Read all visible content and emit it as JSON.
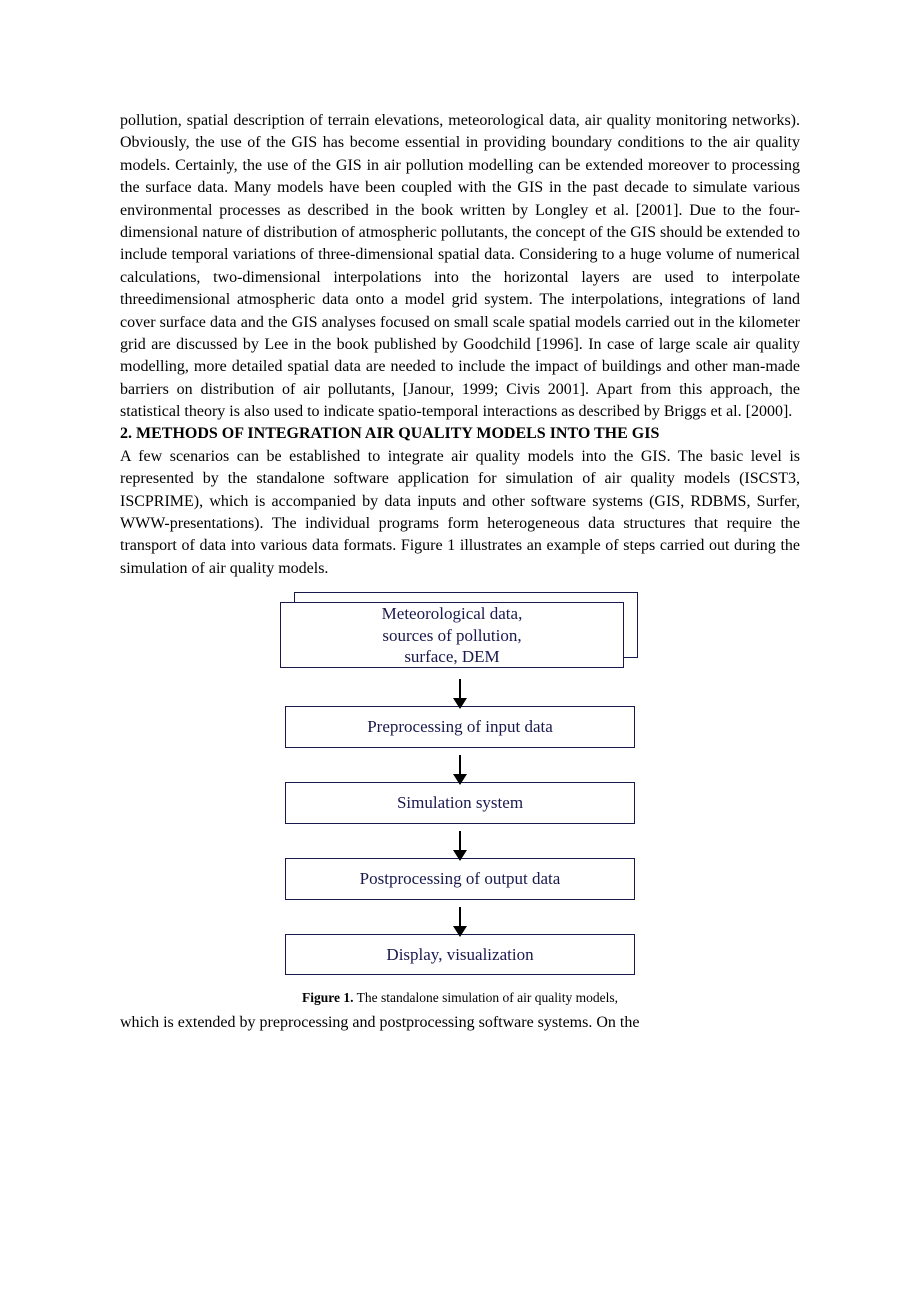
{
  "body": {
    "para1": "pollution, spatial description of terrain elevations, meteorological data, air quality monitoring networks). Obviously, the use of the GIS has become essential in providing boundary conditions to the air quality models. Certainly, the use of the GIS in air pollution modelling can be extended moreover to processing the surface data. Many models have been coupled with the GIS in the past decade to simulate various environmental processes as described in the book written by Longley et al. [2001]. Due to the four-dimensional nature of distribution of atmospheric pollutants, the concept of the GIS should be extended to include temporal variations of three-dimensional spatial data. Considering to a huge volume of numerical calculations, two-dimensional interpolations into the horizontal layers are used to interpolate threedimensional atmospheric data onto a model grid system. The interpolations, integrations of land cover surface data and the GIS analyses focused on small scale spatial models carried out in the kilometer grid are discussed by Lee in the book published by Goodchild [1996]. In case of large scale air quality modelling, more detailed spatial data are needed to include the impact of buildings and other man-made barriers on distribution of air pollutants, [Janour, 1999; Civis 2001]. Apart from this approach, the statistical theory is also used to indicate spatio-temporal interactions as described by Briggs et al. [2000].",
    "heading2": "2. METHODS OF INTEGRATION AIR QUALITY MODELS INTO THE GIS",
    "para2": "A few scenarios can be established to integrate air quality models into the GIS. The basic level is represented by the standalone software application for simulation of air quality models (ISCST3, ISCPRIME), which is accompanied by data inputs and other software systems (GIS, RDBMS, Surfer, WWW-presentations). The individual programs form heterogeneous data structures that require the transport of data into various data formats. Figure 1 illustrates an example of steps carried out during the simulation of air quality models.",
    "para3": "which is extended by preprocessing and postprocessing software systems. On the"
  },
  "figure1": {
    "type": "flowchart",
    "node_border_color": "#19194d",
    "node_text_color": "#19194d",
    "node_fill_color": "#ffffff",
    "arrow_color": "#000000",
    "font_family": "Times New Roman",
    "node_fontsize": 17,
    "nodes": {
      "n1_line1": "Meteorological data,",
      "n1_line2": "sources of pollution,",
      "n1_line3": "surface, DEM",
      "n2": "Preprocessing of input data",
      "n3": "Simulation system",
      "n4": "Postprocessing of output data",
      "n5": "Display, visualization"
    },
    "caption_label": "Figure 1.",
    "caption_text": " The standalone simulation of air quality models,"
  }
}
